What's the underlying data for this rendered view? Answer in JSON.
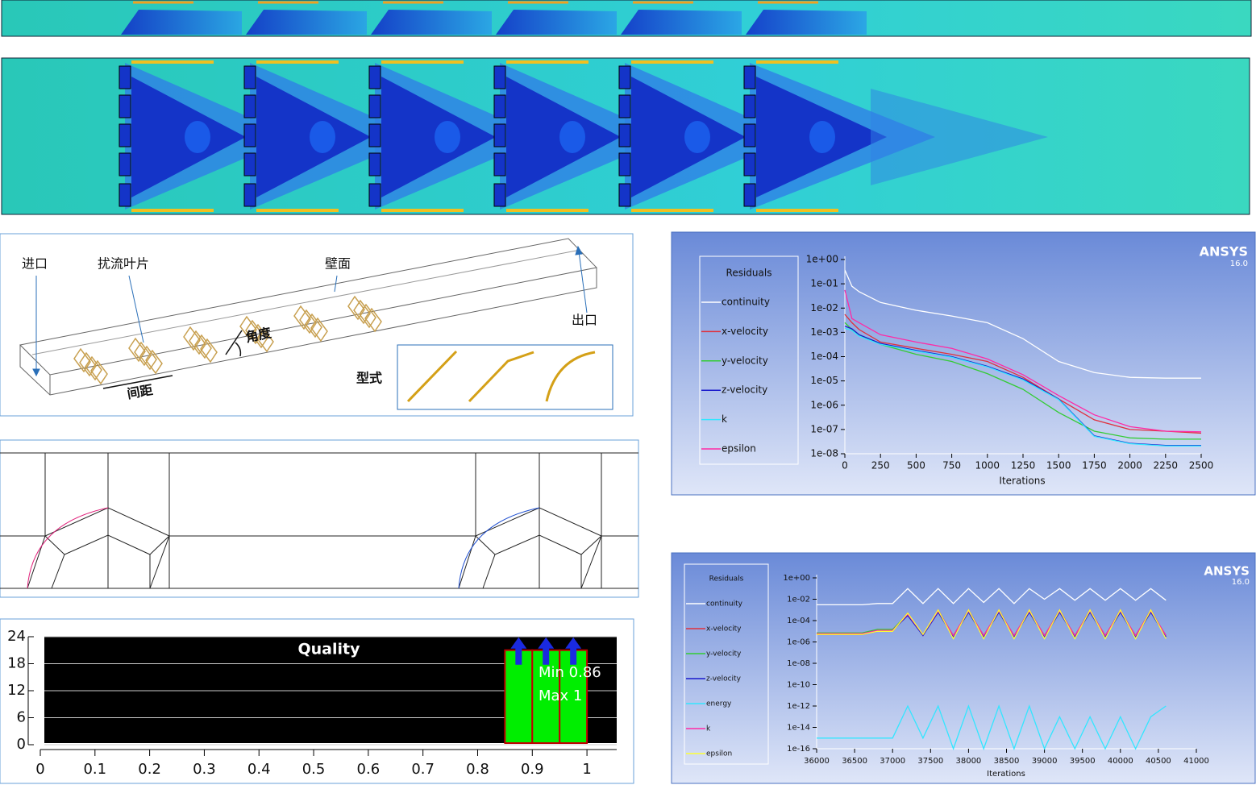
{
  "chart_data": [
    {
      "type": "line",
      "legend_title": "Residuals",
      "brand": "ANSYS",
      "version": "16.0",
      "x_label": "Iterations",
      "log_y": true,
      "x": [
        0,
        50,
        100,
        250,
        500,
        750,
        1000,
        1250,
        1500,
        1750,
        2000,
        2250,
        2500
      ],
      "xlim": [
        0,
        2500
      ],
      "xticks": [
        0,
        250,
        500,
        750,
        1000,
        1250,
        1500,
        1750,
        2000,
        2250,
        2500
      ],
      "ylim": [
        1e-08,
        1
      ],
      "yticks": [
        {
          "value": 1,
          "label": "1e+00"
        },
        {
          "value": 0.1,
          "label": "1e-01"
        },
        {
          "value": 0.01,
          "label": "1e-02"
        },
        {
          "value": 0.001,
          "label": "1e-03"
        },
        {
          "value": 0.0001,
          "label": "1e-04"
        },
        {
          "value": 1e-05,
          "label": "1e-05"
        },
        {
          "value": 1e-06,
          "label": "1e-06"
        },
        {
          "value": 1e-07,
          "label": "1e-07"
        },
        {
          "value": 1e-08,
          "label": "1e-08"
        }
      ],
      "series": [
        {
          "name": "continuity",
          "color": "#ffffff",
          "values": [
            0.37,
            0.079,
            0.047,
            0.017,
            0.0081,
            0.0047,
            0.0025,
            0.00055,
            6.3e-05,
            2.2e-05,
            1.4e-05,
            1.3e-05,
            1.3e-05
          ]
        },
        {
          "name": "x-velocity",
          "color": "#e0303c",
          "values": [
            0.0055,
            0.0025,
            0.0013,
            0.0004,
            0.00022,
            0.000125,
            6.3e-05,
            1.4e-05,
            1.8e-06,
            2.5e-07,
            1e-07,
            8.5e-08,
            7e-08
          ]
        },
        {
          "name": "y-velocity",
          "color": "#33cc33",
          "values": [
            0.0025,
            0.0013,
            0.0008,
            0.00032,
            0.000125,
            6.3e-05,
            2e-05,
            4.5e-06,
            5e-07,
            8.5e-08,
            4.5e-08,
            4e-08,
            4e-08
          ]
        },
        {
          "name": "z-velocity",
          "color": "#1a1acc",
          "values": [
            0.0018,
            0.0014,
            0.0008,
            0.00035,
            0.00018,
            0.0001,
            4e-05,
            1.2e-05,
            1.8e-06,
            5.5e-08,
            2.7e-08,
            2.2e-08,
            2.2e-08
          ]
        },
        {
          "name": "k",
          "color": "#33e6ff",
          "values": [
            0.0015,
            0.0012,
            0.0007,
            0.00032,
            0.00017,
            9.5e-05,
            3.8e-05,
            1.1e-05,
            1.7e-06,
            5.2e-08,
            2.6e-08,
            2.1e-08,
            2.1e-08
          ]
        },
        {
          "name": "epsilon",
          "color": "#ff2aa5",
          "values": [
            0.055,
            0.0037,
            0.0025,
            0.0008,
            0.0004,
            0.00022,
            8e-05,
            1.8e-05,
            2.5e-06,
            4e-07,
            1.3e-07,
            8.5e-08,
            8e-08
          ]
        }
      ]
    },
    {
      "type": "line",
      "legend_title": "Residuals",
      "brand": "ANSYS",
      "version": "16.0",
      "x_label": "Iterations",
      "log_y": true,
      "x": [
        36000,
        36200,
        36400,
        36600,
        36800,
        37000,
        37200,
        37400,
        37600,
        37800,
        38000,
        38200,
        38400,
        38600,
        38800,
        39000,
        39200,
        39400,
        39600,
        39800,
        40000,
        40200,
        40400,
        40600
      ],
      "xlim": [
        36000,
        41000
      ],
      "xticks": [
        36000,
        36500,
        37000,
        37500,
        38000,
        38500,
        39000,
        39500,
        40000,
        40500,
        41000
      ],
      "ylim": [
        1e-16,
        1
      ],
      "yticks": [
        {
          "value": 1,
          "label": "1e+00"
        },
        {
          "value": 0.01,
          "label": "1e-02"
        },
        {
          "value": 0.0001,
          "label": "1e-04"
        },
        {
          "value": 1e-06,
          "label": "1e-06"
        },
        {
          "value": 1e-08,
          "label": "1e-08"
        },
        {
          "value": 1e-10,
          "label": "1e-10"
        },
        {
          "value": 1e-12,
          "label": "1e-12"
        },
        {
          "value": 1e-14,
          "label": "1e-14"
        },
        {
          "value": 1e-16,
          "label": "1e-16"
        }
      ],
      "series": [
        {
          "name": "continuity",
          "color": "#ffffff",
          "values": [
            0.003,
            0.003,
            0.003,
            0.003,
            0.004,
            0.004,
            0.1,
            0.004,
            0.1,
            0.004,
            0.1,
            0.005,
            0.1,
            0.004,
            0.1,
            0.01,
            0.1,
            0.008,
            0.1,
            0.008,
            0.1,
            0.008,
            0.1,
            0.008
          ]
        },
        {
          "name": "x-velocity",
          "color": "#e0303c",
          "values": [
            5e-06,
            5e-06,
            5e-06,
            5e-06,
            1e-05,
            1e-05,
            0.0005,
            4e-06,
            0.001,
            3e-06,
            0.001,
            3e-06,
            0.001,
            3e-06,
            0.001,
            3e-06,
            0.001,
            3e-06,
            0.001,
            3e-06,
            0.001,
            3e-06,
            0.001,
            3e-06
          ]
        },
        {
          "name": "y-velocity",
          "color": "#33cc33",
          "values": [
            7e-06,
            7e-06,
            7e-06,
            7e-06,
            1.5e-05,
            1.5e-05,
            0.0004,
            5e-06,
            0.0008,
            4e-06,
            0.0008,
            4e-06,
            0.0008,
            4e-06,
            0.0008,
            4e-06,
            0.0008,
            4e-06,
            0.0008,
            4e-06,
            0.0008,
            4e-06,
            0.0008,
            4e-06
          ]
        },
        {
          "name": "z-velocity",
          "color": "#1a1acc",
          "values": [
            6e-06,
            6e-06,
            6e-06,
            6e-06,
            1.2e-05,
            1.2e-05,
            0.0003,
            4e-06,
            0.0006,
            3e-06,
            0.0006,
            3e-06,
            0.0006,
            3e-06,
            0.0006,
            3e-06,
            0.0006,
            3e-06,
            0.0006,
            3e-06,
            0.0006,
            3e-06,
            0.0006,
            3e-06
          ]
        },
        {
          "name": "energy",
          "color": "#33e6ff",
          "values": [
            1e-15,
            1e-15,
            1e-15,
            1e-15,
            1e-15,
            1e-15,
            1e-12,
            1e-15,
            1e-12,
            1e-16,
            1e-12,
            1e-16,
            1e-12,
            1e-16,
            1e-12,
            1e-16,
            1e-13,
            1e-16,
            1e-13,
            1e-16,
            1e-13,
            1e-16,
            1e-13,
            1e-12
          ]
        },
        {
          "name": "k",
          "color": "#ff2aa5",
          "values": [
            6e-06,
            6e-06,
            6e-06,
            6e-06,
            1.2e-05,
            1.2e-05,
            0.0004,
            5e-06,
            0.0008,
            4e-06,
            0.0008,
            4e-06,
            0.0008,
            4e-06,
            0.0008,
            4e-06,
            0.0008,
            4e-06,
            0.0008,
            4e-06,
            0.0008,
            4e-06,
            0.0008,
            4e-06
          ]
        },
        {
          "name": "epsilon",
          "color": "#ffff33",
          "values": [
            5e-06,
            5e-06,
            5e-06,
            5e-06,
            1e-05,
            1e-05,
            0.0005,
            5e-06,
            0.001,
            2e-06,
            0.001,
            2e-06,
            0.001,
            2e-06,
            0.001,
            2e-06,
            0.001,
            2e-06,
            0.001,
            2e-06,
            0.001,
            2e-06,
            0.001,
            2e-06
          ]
        }
      ]
    },
    {
      "type": "histogram",
      "title": "Quality",
      "annotations": [
        "Min 0.86",
        "Max 1"
      ],
      "bins": [
        0.85,
        0.9,
        0.95,
        1
      ],
      "values": [
        21,
        21,
        21
      ],
      "color": "#00ee00",
      "xlim": [
        0,
        1.05
      ],
      "xticks": [
        0,
        0.1,
        0.2,
        0.3,
        0.4,
        0.5,
        0.6,
        0.7,
        0.8,
        0.9,
        1
      ],
      "ylim": [
        0,
        24
      ],
      "yticks": [
        0,
        6,
        12,
        18,
        24
      ],
      "grid": true
    }
  ],
  "diagram": {
    "inlet": "进口",
    "vanes": "扰流叶片",
    "wall": "壁面",
    "outlet": "出口",
    "angle": "角度",
    "spacing": "间距",
    "form": "型式"
  }
}
